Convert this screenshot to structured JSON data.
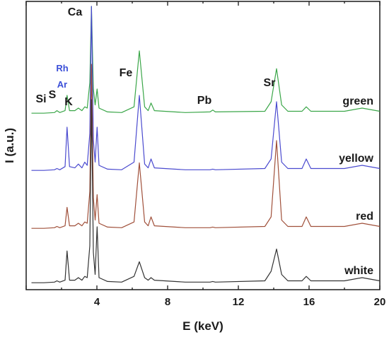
{
  "chart_data": {
    "type": "line",
    "xlabel": "E (keV)",
    "ylabel": "I (a.u.)",
    "xlim": [
      0,
      20
    ],
    "x_ticks": [
      "4",
      "8",
      "12",
      "16",
      "20"
    ],
    "grid": false,
    "series": [
      {
        "name": "green",
        "color": "#3aa648",
        "points": [
          [
            0.3,
            0.02
          ],
          [
            1.0,
            0.02
          ],
          [
            1.6,
            0.03
          ],
          [
            1.74,
            0.06
          ],
          [
            1.9,
            0.03
          ],
          [
            2.2,
            0.06
          ],
          [
            2.31,
            0.3
          ],
          [
            2.45,
            0.06
          ],
          [
            2.75,
            0.06
          ],
          [
            2.95,
            0.1
          ],
          [
            3.15,
            0.06
          ],
          [
            3.31,
            0.12
          ],
          [
            3.45,
            0.1
          ],
          [
            3.6,
            0.5
          ],
          [
            3.69,
            1.7
          ],
          [
            3.8,
            0.4
          ],
          [
            3.9,
            0.15
          ],
          [
            4.01,
            0.4
          ],
          [
            4.12,
            0.1
          ],
          [
            4.6,
            0.04
          ],
          [
            5.4,
            0.03
          ],
          [
            6.1,
            0.12
          ],
          [
            6.4,
            1.0
          ],
          [
            6.7,
            0.12
          ],
          [
            6.9,
            0.06
          ],
          [
            7.06,
            0.18
          ],
          [
            7.25,
            0.06
          ],
          [
            9.0,
            0.03
          ],
          [
            10.4,
            0.04
          ],
          [
            10.55,
            0.07
          ],
          [
            10.7,
            0.04
          ],
          [
            13.5,
            0.05
          ],
          [
            13.85,
            0.2
          ],
          [
            14.16,
            0.72
          ],
          [
            14.45,
            0.15
          ],
          [
            14.8,
            0.05
          ],
          [
            15.6,
            0.05
          ],
          [
            15.84,
            0.12
          ],
          [
            16.1,
            0.05
          ],
          [
            18.0,
            0.05
          ],
          [
            19.0,
            0.1
          ],
          [
            20.0,
            0.05
          ]
        ]
      },
      {
        "name": "yellow",
        "color": "#4a4acf",
        "points": [
          [
            0.3,
            0.02
          ],
          [
            1.0,
            0.02
          ],
          [
            1.6,
            0.03
          ],
          [
            1.74,
            0.05
          ],
          [
            1.9,
            0.03
          ],
          [
            2.2,
            0.08
          ],
          [
            2.31,
            0.7
          ],
          [
            2.45,
            0.08
          ],
          [
            2.75,
            0.06
          ],
          [
            2.95,
            0.12
          ],
          [
            3.15,
            0.06
          ],
          [
            3.31,
            0.15
          ],
          [
            3.45,
            0.1
          ],
          [
            3.6,
            0.6
          ],
          [
            3.69,
            2.6
          ],
          [
            3.8,
            0.5
          ],
          [
            3.9,
            0.15
          ],
          [
            4.01,
            0.7
          ],
          [
            4.12,
            0.1
          ],
          [
            4.6,
            0.04
          ],
          [
            5.4,
            0.03
          ],
          [
            6.1,
            0.15
          ],
          [
            6.4,
            1.2
          ],
          [
            6.7,
            0.12
          ],
          [
            6.9,
            0.06
          ],
          [
            7.06,
            0.2
          ],
          [
            7.25,
            0.06
          ],
          [
            9.0,
            0.03
          ],
          [
            10.4,
            0.03
          ],
          [
            10.55,
            0.04
          ],
          [
            10.7,
            0.03
          ],
          [
            13.5,
            0.05
          ],
          [
            13.85,
            0.2
          ],
          [
            14.16,
            1.1
          ],
          [
            14.45,
            0.15
          ],
          [
            14.8,
            0.05
          ],
          [
            15.6,
            0.05
          ],
          [
            15.84,
            0.2
          ],
          [
            16.1,
            0.05
          ],
          [
            18.0,
            0.05
          ],
          [
            19.0,
            0.1
          ],
          [
            20.0,
            0.05
          ]
        ]
      },
      {
        "name": "red",
        "color": "#a0503a",
        "points": [
          [
            0.3,
            0.02
          ],
          [
            1.0,
            0.02
          ],
          [
            1.6,
            0.03
          ],
          [
            1.74,
            0.05
          ],
          [
            1.9,
            0.03
          ],
          [
            2.2,
            0.06
          ],
          [
            2.31,
            0.35
          ],
          [
            2.45,
            0.06
          ],
          [
            2.75,
            0.06
          ],
          [
            2.95,
            0.1
          ],
          [
            3.15,
            0.06
          ],
          [
            3.31,
            0.12
          ],
          [
            3.45,
            0.1
          ],
          [
            3.6,
            0.6
          ],
          [
            3.69,
            2.6
          ],
          [
            3.8,
            0.5
          ],
          [
            3.9,
            0.15
          ],
          [
            4.01,
            0.55
          ],
          [
            4.12,
            0.1
          ],
          [
            4.6,
            0.04
          ],
          [
            5.4,
            0.03
          ],
          [
            6.1,
            0.12
          ],
          [
            6.4,
            1.05
          ],
          [
            6.7,
            0.12
          ],
          [
            6.9,
            0.06
          ],
          [
            7.06,
            0.2
          ],
          [
            7.25,
            0.06
          ],
          [
            9.0,
            0.03
          ],
          [
            10.4,
            0.03
          ],
          [
            10.55,
            0.04
          ],
          [
            10.7,
            0.03
          ],
          [
            13.5,
            0.05
          ],
          [
            13.85,
            0.2
          ],
          [
            14.16,
            1.4
          ],
          [
            14.45,
            0.15
          ],
          [
            14.8,
            0.05
          ],
          [
            15.6,
            0.05
          ],
          [
            15.84,
            0.2
          ],
          [
            16.1,
            0.05
          ],
          [
            18.0,
            0.05
          ],
          [
            19.0,
            0.1
          ],
          [
            20.0,
            0.05
          ]
        ]
      },
      {
        "name": "white",
        "color": "#333333",
        "points": [
          [
            0.3,
            0.02
          ],
          [
            1.0,
            0.02
          ],
          [
            1.6,
            0.03
          ],
          [
            1.74,
            0.05
          ],
          [
            1.9,
            0.03
          ],
          [
            2.2,
            0.06
          ],
          [
            2.31,
            0.52
          ],
          [
            2.45,
            0.06
          ],
          [
            2.75,
            0.06
          ],
          [
            2.95,
            0.1
          ],
          [
            3.15,
            0.06
          ],
          [
            3.31,
            0.12
          ],
          [
            3.45,
            0.1
          ],
          [
            3.6,
            0.6
          ],
          [
            3.69,
            2.9
          ],
          [
            3.8,
            0.5
          ],
          [
            3.9,
            0.15
          ],
          [
            4.01,
            0.9
          ],
          [
            4.12,
            0.1
          ],
          [
            4.6,
            0.04
          ],
          [
            5.4,
            0.03
          ],
          [
            6.1,
            0.12
          ],
          [
            6.4,
            0.35
          ],
          [
            6.7,
            0.1
          ],
          [
            6.9,
            0.06
          ],
          [
            7.06,
            0.1
          ],
          [
            7.25,
            0.06
          ],
          [
            9.0,
            0.03
          ],
          [
            10.4,
            0.03
          ],
          [
            10.55,
            0.04
          ],
          [
            10.7,
            0.03
          ],
          [
            13.5,
            0.05
          ],
          [
            13.85,
            0.2
          ],
          [
            14.16,
            0.55
          ],
          [
            14.45,
            0.15
          ],
          [
            14.8,
            0.05
          ],
          [
            15.6,
            0.05
          ],
          [
            15.84,
            0.12
          ],
          [
            16.1,
            0.05
          ],
          [
            18.0,
            0.05
          ],
          [
            19.0,
            0.1
          ],
          [
            20.0,
            0.05
          ]
        ]
      }
    ],
    "series_labels": [
      "green",
      "yellow",
      "red",
      "white"
    ],
    "element_labels": [
      {
        "text": "Si",
        "x": 1.74,
        "color": "#1a1a1a"
      },
      {
        "text": "S",
        "x": 2.31,
        "color": "#1a1a1a"
      },
      {
        "text": "K",
        "x": 3.31,
        "color": "#1a1a1a"
      },
      {
        "text": "Ca",
        "x": 3.69,
        "color": "#1a1a1a"
      },
      {
        "text": "Rh",
        "x": 2.85,
        "color": "#3b4fd8"
      },
      {
        "text": "Ar",
        "x": 2.95,
        "color": "#3b4fd8"
      },
      {
        "text": "Fe",
        "x": 6.4,
        "color": "#1a1a1a"
      },
      {
        "text": "Pb",
        "x": 10.55,
        "color": "#1a1a1a"
      },
      {
        "text": "Sr",
        "x": 14.16,
        "color": "#1a1a1a"
      }
    ]
  }
}
